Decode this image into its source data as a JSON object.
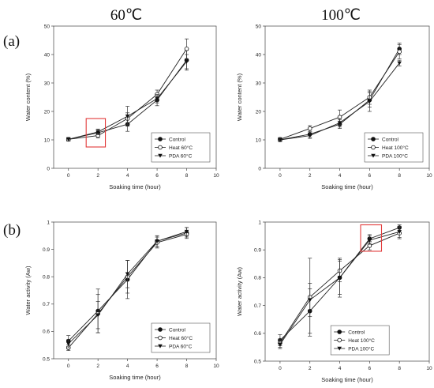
{
  "column_headers": [
    "60℃",
    "100℃"
  ],
  "row_labels": [
    "(a)",
    "(b)"
  ],
  "chart_data": [
    {
      "type": "line",
      "panel": "top-left",
      "xlabel": "Soaking time (hour)",
      "ylabel": "Water content (%)",
      "xlim": [
        -1,
        10
      ],
      "ylim": [
        0,
        50
      ],
      "xticks": [
        0,
        2,
        4,
        6,
        8,
        10
      ],
      "yticks": [
        0,
        10,
        20,
        30,
        40,
        50
      ],
      "x": [
        0,
        2,
        4,
        6,
        8
      ],
      "legend_position": "bottom-right",
      "highlight": {
        "x": [
          1.2,
          2.5
        ],
        "y": [
          7.5,
          17.5
        ]
      },
      "series": [
        {
          "name": "Control",
          "marker": "filled-circle",
          "values": [
            10.2,
            12.5,
            15.5,
            24.0,
            38.0
          ],
          "err": [
            0.6,
            1.2,
            2.5,
            2.0,
            3.5
          ]
        },
        {
          "name": "Heat 60°C",
          "marker": "open-circle",
          "values": [
            10.2,
            11.5,
            17.5,
            26.0,
            42.0
          ],
          "err": [
            0.6,
            0.8,
            2.0,
            1.5,
            3.5
          ]
        },
        {
          "name": "PDA 60°C",
          "marker": "filled-triangle",
          "values": [
            10.2,
            12.8,
            18.3,
            24.5,
            37.5
          ],
          "err": [
            0.6,
            1.0,
            3.5,
            1.5,
            2.5
          ]
        }
      ]
    },
    {
      "type": "line",
      "panel": "top-right",
      "xlabel": "Soaking time (hour)",
      "ylabel": "Water content (%)",
      "xlim": [
        -1,
        10
      ],
      "ylim": [
        0,
        50
      ],
      "xticks": [
        0,
        2,
        4,
        6,
        8,
        10
      ],
      "yticks": [
        0,
        10,
        20,
        30,
        40,
        50
      ],
      "x": [
        0,
        2,
        4,
        6,
        8
      ],
      "legend_position": "bottom-right",
      "series": [
        {
          "name": "Control",
          "marker": "filled-circle",
          "values": [
            10.0,
            12.0,
            15.5,
            24.0,
            42.0
          ],
          "err": [
            0.6,
            1.0,
            1.5,
            2.5,
            2.0
          ]
        },
        {
          "name": "Heat 100°C",
          "marker": "open-circle",
          "values": [
            10.2,
            14.0,
            18.0,
            25.0,
            41.0
          ],
          "err": [
            0.6,
            1.0,
            2.5,
            2.5,
            2.5
          ]
        },
        {
          "name": "PDA 100°C",
          "marker": "filled-triangle",
          "values": [
            10.0,
            11.5,
            16.0,
            23.5,
            37.0
          ],
          "err": [
            0.6,
            1.0,
            1.5,
            3.5,
            1.0
          ]
        }
      ]
    },
    {
      "type": "line",
      "panel": "bottom-left",
      "xlabel": "Soaking time (hour)",
      "ylabel": "Water activity (Aw)",
      "xlim": [
        -1,
        10
      ],
      "ylim": [
        0.5,
        1.0
      ],
      "xticks": [
        0,
        2,
        4,
        6,
        8,
        10
      ],
      "yticks": [
        0.5,
        0.6,
        0.7,
        0.8,
        0.9,
        1.0
      ],
      "x": [
        0,
        2,
        4,
        6,
        8
      ],
      "legend_position": "bottom-right",
      "series": [
        {
          "name": "Control",
          "marker": "filled-circle",
          "values": [
            0.565,
            0.675,
            0.79,
            0.93,
            0.96
          ],
          "err": [
            0.02,
            0.08,
            0.07,
            0.02,
            0.02
          ]
        },
        {
          "name": "Heat 60°C",
          "marker": "open-circle",
          "values": [
            0.54,
            0.665,
            0.8,
            0.925,
            0.955
          ],
          "err": [
            0.01,
            0.07,
            0.06,
            0.02,
            0.01
          ]
        },
        {
          "name": "PDA 60°C",
          "marker": "filled-triangle",
          "values": [
            0.555,
            0.66,
            0.81,
            0.93,
            0.965
          ],
          "err": [
            0.015,
            0.05,
            0.05,
            0.02,
            0.015
          ]
        }
      ]
    },
    {
      "type": "line",
      "panel": "bottom-right",
      "xlabel": "Soaking time (hour)",
      "ylabel": "Water activity (Aw)",
      "xlim": [
        -1,
        10
      ],
      "ylim": [
        0.5,
        1.0
      ],
      "xticks": [
        0,
        2,
        4,
        6,
        8,
        10
      ],
      "yticks": [
        0.5,
        0.6,
        0.7,
        0.8,
        0.9,
        1.0
      ],
      "x": [
        0,
        2,
        4,
        6,
        8
      ],
      "legend_position": "bottom-left",
      "highlight": {
        "x": [
          5.4,
          6.8
        ],
        "y": [
          0.895,
          0.99
        ]
      },
      "series": [
        {
          "name": "Control",
          "marker": "filled-circle",
          "values": [
            0.575,
            0.68,
            0.8,
            0.94,
            0.98
          ],
          "err": [
            0.02,
            0.08,
            0.07,
            0.015,
            0.01
          ]
        },
        {
          "name": "Heat 100°C",
          "marker": "open-circle",
          "values": [
            0.565,
            0.73,
            0.825,
            0.915,
            0.96
          ],
          "err": [
            0.015,
            0.14,
            0.04,
            0.015,
            0.02
          ]
        },
        {
          "name": "PDA 100°C",
          "marker": "filled-triangle",
          "values": [
            0.56,
            0.72,
            0.8,
            0.935,
            0.965
          ],
          "err": [
            0.015,
            0.06,
            0.06,
            0.015,
            0.02
          ]
        }
      ]
    }
  ]
}
